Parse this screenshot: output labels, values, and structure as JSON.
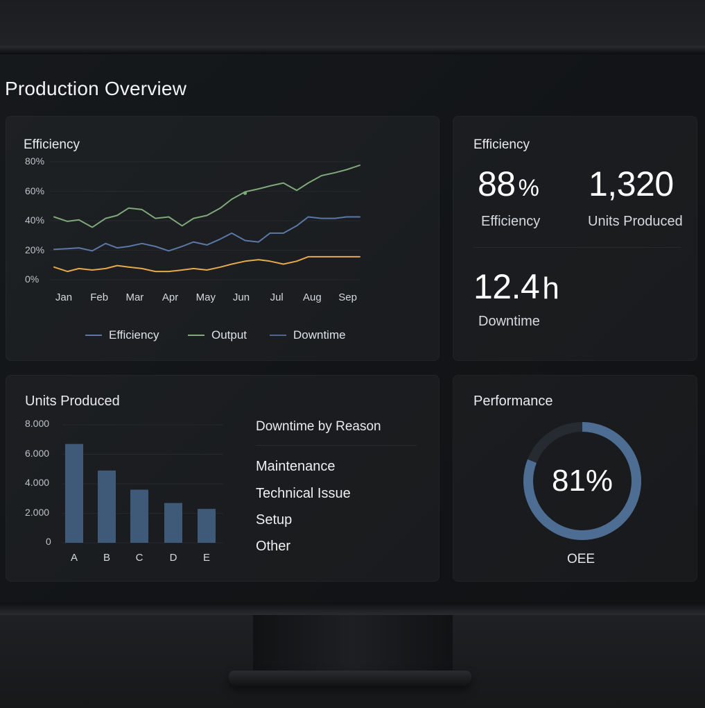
{
  "page": {
    "title": "Production Overview"
  },
  "colors": {
    "efficiency": "#5b78a6",
    "output": "#7fa97b",
    "downtime_line": "#e8a94a",
    "bar": "#3f5a78",
    "donut_fill": "#4e6d92",
    "donut_track": "#262b31"
  },
  "efficiency_chart": {
    "title": "Efficiency",
    "legend": [
      {
        "label": "Efficiency",
        "color": "#5b78a6"
      },
      {
        "label": "Output",
        "color": "#7fa97b"
      },
      {
        "label": "Downtime",
        "color": "#4f6690"
      }
    ]
  },
  "kpis": {
    "title": "Efficiency",
    "efficiency": {
      "value": "88",
      "unit": "%",
      "label": "Efficiency"
    },
    "units": {
      "value": "1,320",
      "label": "Units Produced"
    },
    "downtime": {
      "value": "12.4",
      "unit": "h",
      "label": "Downtime"
    }
  },
  "units_chart": {
    "title": "Units Produced"
  },
  "downtime_reasons": {
    "title": "Downtime by Reason",
    "items": [
      "Maintenance",
      "Technical Issue",
      "Setup",
      "Other"
    ]
  },
  "performance": {
    "title": "Performance",
    "value_text": "81%",
    "value": 81,
    "label": "OEE"
  },
  "chart_data": [
    {
      "type": "line",
      "title": "Efficiency",
      "categories": [
        "Jan",
        "Feb",
        "Mar",
        "Apr",
        "May",
        "Jun",
        "Jul",
        "Aug",
        "Sep"
      ],
      "yticks": [
        "80%",
        "60%",
        "40%",
        "20%",
        "0%"
      ],
      "ylim": [
        0,
        80
      ],
      "x": [
        0.5,
        0.85,
        1.15,
        1.5,
        1.85,
        2.15,
        2.45,
        2.8,
        3.15,
        3.5,
        3.85,
        4.15,
        4.5,
        4.85,
        5.15,
        5.5,
        5.85,
        6.15,
        6.5,
        6.85,
        7.15,
        7.5,
        7.85,
        8.15,
        8.5
      ],
      "series": [
        {
          "name": "Output",
          "color": "#7fa97b",
          "values": [
            44,
            41,
            42,
            37,
            43,
            45,
            50,
            49,
            43,
            44,
            38,
            43,
            45,
            50,
            56,
            61,
            63,
            65,
            67,
            62,
            67,
            72,
            74,
            76,
            79
          ]
        },
        {
          "name": "Efficiency",
          "color": "#5b78a6",
          "values": [
            22,
            22.5,
            23,
            21,
            26,
            23,
            24,
            26,
            24,
            21,
            24,
            27,
            25,
            29,
            33,
            28,
            27,
            33,
            33,
            38,
            44,
            43,
            43,
            44,
            44
          ]
        },
        {
          "name": "Downtime",
          "color": "#e8a94a",
          "values": [
            10,
            7,
            9,
            8,
            9,
            11,
            10,
            9,
            7,
            7,
            8,
            9,
            8,
            10,
            12,
            14,
            15,
            14,
            12,
            14,
            17,
            17,
            17,
            17,
            17
          ]
        }
      ]
    },
    {
      "type": "bar",
      "title": "Units Produced",
      "categories": [
        "A",
        "B",
        "C",
        "D",
        "E"
      ],
      "values": [
        6700,
        4900,
        3600,
        2700,
        2300
      ],
      "yticks": [
        "8.000",
        "6.000",
        "4.000",
        "2.000",
        "0"
      ],
      "ylim": [
        0,
        8000
      ]
    },
    {
      "type": "pie",
      "title": "Performance",
      "values": [
        81,
        19
      ],
      "labels": [
        "OEE",
        ""
      ]
    }
  ]
}
